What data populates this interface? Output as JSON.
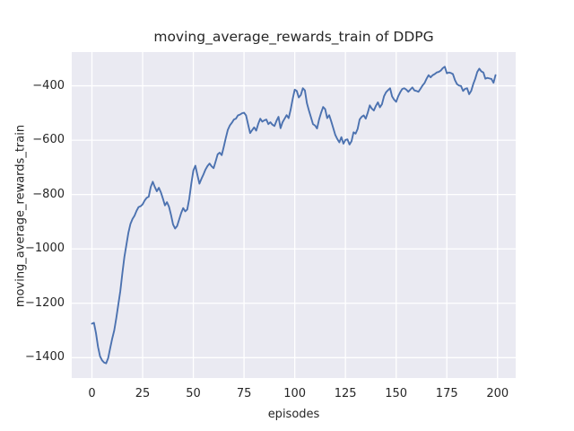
{
  "style": {
    "figure_bg": "#ffffff",
    "plot_bg": "#eaeaf2",
    "grid_color": "#ffffff",
    "text_color": "#262626",
    "line_color": "#4c72b0"
  },
  "chart_data": {
    "type": "line",
    "title": "moving_average_rewards_train of DDPG",
    "xlabel": "episodes",
    "ylabel": "moving_average_rewards_train",
    "grid": true,
    "legend_position": "none",
    "x_ticks": [
      0,
      25,
      50,
      75,
      100,
      125,
      150,
      175,
      200
    ],
    "y_ticks": [
      -400,
      -600,
      -800,
      -1000,
      -1200,
      -1400
    ],
    "xlim": [
      -9.95,
      208.95
    ],
    "ylim": [
      -1475,
      -276
    ],
    "series": [
      {
        "name": "moving_average_rewards_train",
        "color": "#4c72b0",
        "x_start": 0,
        "x_step": 1,
        "values": [
          -1275,
          -1272,
          -1310,
          -1360,
          -1395,
          -1410,
          -1418,
          -1421,
          -1402,
          -1365,
          -1330,
          -1300,
          -1255,
          -1205,
          -1155,
          -1090,
          -1030,
          -985,
          -940,
          -908,
          -890,
          -878,
          -860,
          -846,
          -843,
          -836,
          -822,
          -812,
          -808,
          -772,
          -753,
          -772,
          -788,
          -775,
          -792,
          -815,
          -840,
          -828,
          -845,
          -875,
          -910,
          -925,
          -916,
          -892,
          -868,
          -850,
          -862,
          -855,
          -815,
          -760,
          -712,
          -694,
          -728,
          -760,
          -742,
          -726,
          -708,
          -695,
          -686,
          -696,
          -703,
          -678,
          -652,
          -646,
          -655,
          -625,
          -592,
          -562,
          -546,
          -536,
          -524,
          -521,
          -509,
          -506,
          -501,
          -499,
          -509,
          -542,
          -574,
          -563,
          -553,
          -565,
          -540,
          -521,
          -532,
          -527,
          -524,
          -541,
          -534,
          -543,
          -548,
          -529,
          -514,
          -556,
          -534,
          -521,
          -508,
          -519,
          -487,
          -448,
          -414,
          -419,
          -443,
          -434,
          -409,
          -417,
          -464,
          -491,
          -516,
          -541,
          -546,
          -557,
          -524,
          -499,
          -478,
          -486,
          -519,
          -508,
          -531,
          -556,
          -581,
          -596,
          -608,
          -589,
          -613,
          -599,
          -597,
          -616,
          -604,
          -571,
          -576,
          -559,
          -524,
          -514,
          -509,
          -521,
          -499,
          -472,
          -484,
          -491,
          -474,
          -461,
          -479,
          -468,
          -439,
          -424,
          -416,
          -409,
          -439,
          -451,
          -459,
          -439,
          -424,
          -412,
          -409,
          -414,
          -422,
          -414,
          -406,
          -417,
          -419,
          -422,
          -411,
          -399,
          -390,
          -374,
          -361,
          -369,
          -361,
          -357,
          -351,
          -349,
          -344,
          -335,
          -330,
          -354,
          -351,
          -353,
          -357,
          -379,
          -394,
          -399,
          -401,
          -419,
          -411,
          -409,
          -431,
          -419,
          -394,
          -374,
          -349,
          -337,
          -347,
          -351,
          -374,
          -371,
          -373,
          -375,
          -389,
          -361
        ]
      }
    ]
  }
}
